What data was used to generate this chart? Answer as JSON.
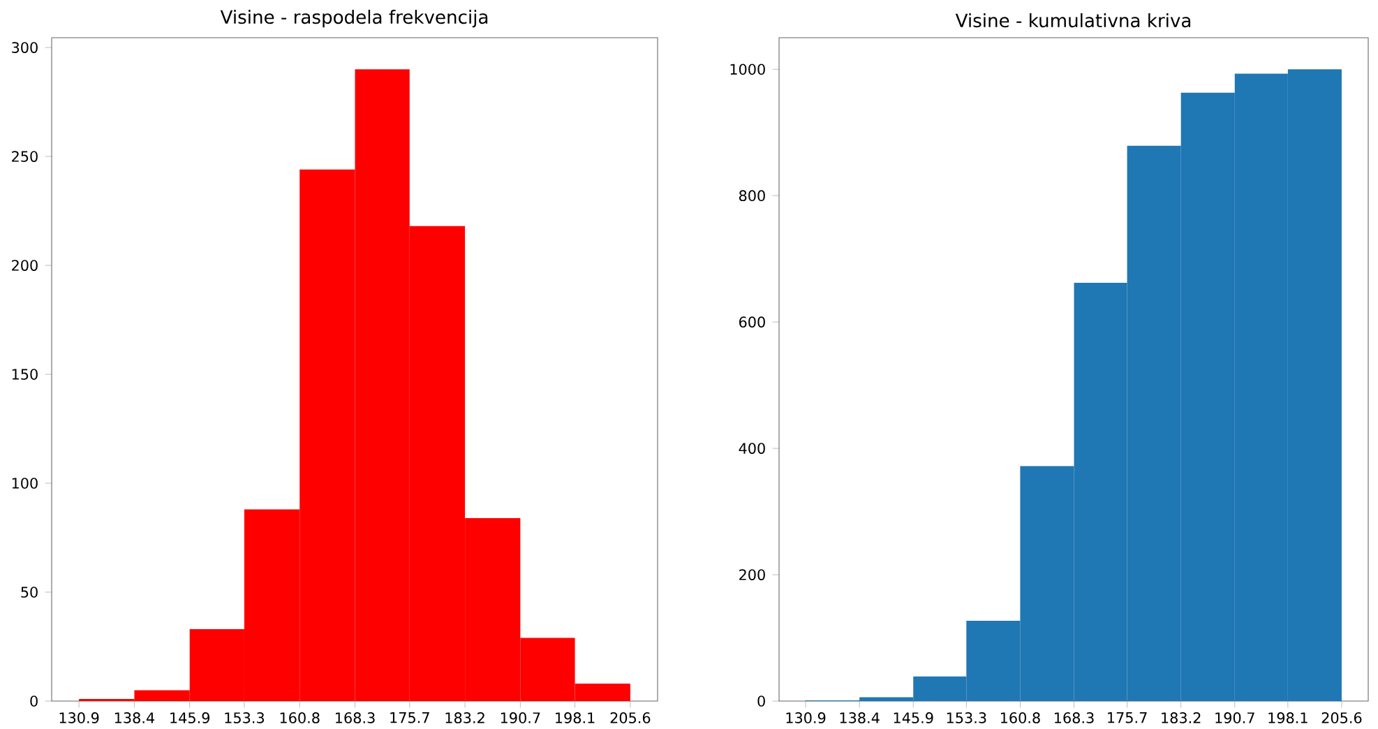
{
  "chart_data": [
    {
      "type": "histogram",
      "title": "Visine - raspodela frekvencija",
      "bins": [
        130.9,
        138.4,
        145.9,
        153.3,
        160.8,
        168.3,
        175.7,
        183.2,
        190.7,
        198.1,
        205.6
      ],
      "values": [
        1,
        5,
        33,
        88,
        244,
        290,
        218,
        84,
        29,
        8
      ],
      "color": "#ff0000",
      "xlim": [
        127.2,
        209.3
      ],
      "ylim": [
        0,
        304.5
      ],
      "xticks": [
        130.9,
        138.4,
        145.9,
        153.3,
        160.8,
        168.3,
        175.7,
        183.2,
        190.7,
        198.1,
        205.6
      ],
      "yticks": [
        0,
        50,
        100,
        150,
        200,
        250,
        300
      ],
      "grid": false
    },
    {
      "type": "histogram",
      "title": "Visine - kumulativna kriva",
      "bins": [
        130.9,
        138.4,
        145.9,
        153.3,
        160.8,
        168.3,
        175.7,
        183.2,
        190.7,
        198.1,
        205.6
      ],
      "values": [
        1,
        6,
        39,
        127,
        372,
        662,
        879,
        963,
        993,
        1000
      ],
      "color": "#1f77b4",
      "xlim": [
        127.2,
        209.3
      ],
      "ylim": [
        0,
        1050
      ],
      "xticks": [
        130.9,
        138.4,
        145.9,
        153.3,
        160.8,
        168.3,
        175.7,
        183.2,
        190.7,
        198.1,
        205.6
      ],
      "yticks": [
        0,
        200,
        400,
        600,
        800,
        1000
      ],
      "grid": false
    }
  ]
}
